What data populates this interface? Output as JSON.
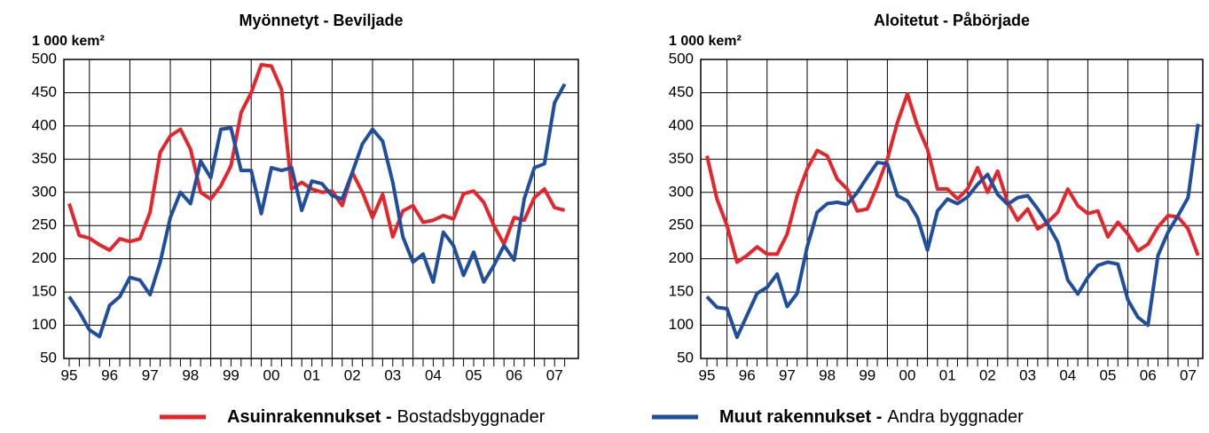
{
  "chart_data": [
    {
      "type": "line",
      "title": "Myönnetyt  -  Beviljade",
      "y_label": "1 000 kem²",
      "categories": [
        "95",
        null,
        null,
        null,
        "96",
        null,
        null,
        null,
        "97",
        null,
        null,
        null,
        "98",
        null,
        null,
        null,
        "99",
        null,
        null,
        null,
        "00",
        null,
        null,
        null,
        "01",
        null,
        null,
        null,
        "02",
        null,
        null,
        null,
        "03",
        null,
        null,
        null,
        "04",
        null,
        null,
        null,
        "05",
        null,
        null,
        null,
        "06",
        null,
        null,
        null,
        "07",
        null
      ],
      "ylim": [
        50,
        500
      ],
      "yticks": [
        50,
        100,
        150,
        200,
        250,
        300,
        350,
        400,
        450,
        500
      ],
      "grid": true,
      "series": [
        {
          "color": "#e8242b",
          "values": [
            283,
            235,
            231,
            221,
            213,
            230,
            226,
            230,
            270,
            360,
            385,
            395,
            365,
            300,
            290,
            310,
            340,
            420,
            450,
            492,
            490,
            455,
            305,
            315,
            305,
            300,
            302,
            280,
            330,
            300,
            262,
            297,
            233,
            272,
            280,
            255,
            258,
            265,
            260,
            298,
            302,
            285,
            250,
            222,
            262,
            258,
            292,
            305,
            277,
            273
          ]
        },
        {
          "color": "#1f4e9e",
          "values": [
            143,
            120,
            93,
            83,
            130,
            143,
            172,
            168,
            146,
            195,
            262,
            300,
            283,
            347,
            322,
            395,
            397,
            333,
            333,
            268,
            337,
            333,
            337,
            273,
            317,
            313,
            295,
            290,
            330,
            373,
            395,
            377,
            315,
            233,
            195,
            207,
            165,
            240,
            220,
            175,
            210,
            165,
            190,
            220,
            198,
            290,
            337,
            343,
            435,
            463
          ]
        }
      ]
    },
    {
      "type": "line",
      "title": "Aloitetut  -  Påbörjade",
      "y_label": "1 000 kem²",
      "categories": [
        "95",
        null,
        null,
        null,
        "96",
        null,
        null,
        null,
        "97",
        null,
        null,
        null,
        "98",
        null,
        null,
        null,
        "99",
        null,
        null,
        null,
        "00",
        null,
        null,
        null,
        "01",
        null,
        null,
        null,
        "02",
        null,
        null,
        null,
        "03",
        null,
        null,
        null,
        "04",
        null,
        null,
        null,
        "05",
        null,
        null,
        null,
        "06",
        null,
        null,
        null,
        "07",
        null
      ],
      "ylim": [
        50,
        500
      ],
      "yticks": [
        50,
        100,
        150,
        200,
        250,
        300,
        350,
        400,
        450,
        500
      ],
      "grid": true,
      "series": [
        {
          "color": "#e8242b",
          "values": [
            355,
            290,
            250,
            195,
            205,
            218,
            207,
            207,
            237,
            295,
            335,
            363,
            355,
            320,
            305,
            272,
            275,
            310,
            350,
            405,
            448,
            400,
            365,
            305,
            305,
            290,
            305,
            337,
            300,
            332,
            285,
            258,
            275,
            245,
            255,
            270,
            305,
            280,
            268,
            272,
            233,
            255,
            237,
            212,
            222,
            248,
            265,
            263,
            245,
            205
          ]
        },
        {
          "color": "#1f4e9e",
          "values": [
            143,
            127,
            125,
            82,
            115,
            148,
            157,
            177,
            128,
            148,
            218,
            270,
            283,
            285,
            282,
            300,
            323,
            345,
            343,
            295,
            287,
            262,
            213,
            272,
            290,
            283,
            293,
            312,
            327,
            297,
            282,
            292,
            295,
            275,
            252,
            225,
            168,
            147,
            172,
            190,
            195,
            192,
            138,
            112,
            100,
            205,
            240,
            265,
            292,
            403
          ]
        }
      ]
    }
  ],
  "legend": [
    {
      "bold": "Asuinrakennukset -",
      "text": "Bostadsbyggnader"
    },
    {
      "bold": "Muut rakennukset -",
      "text": "Andra byggnader"
    }
  ]
}
